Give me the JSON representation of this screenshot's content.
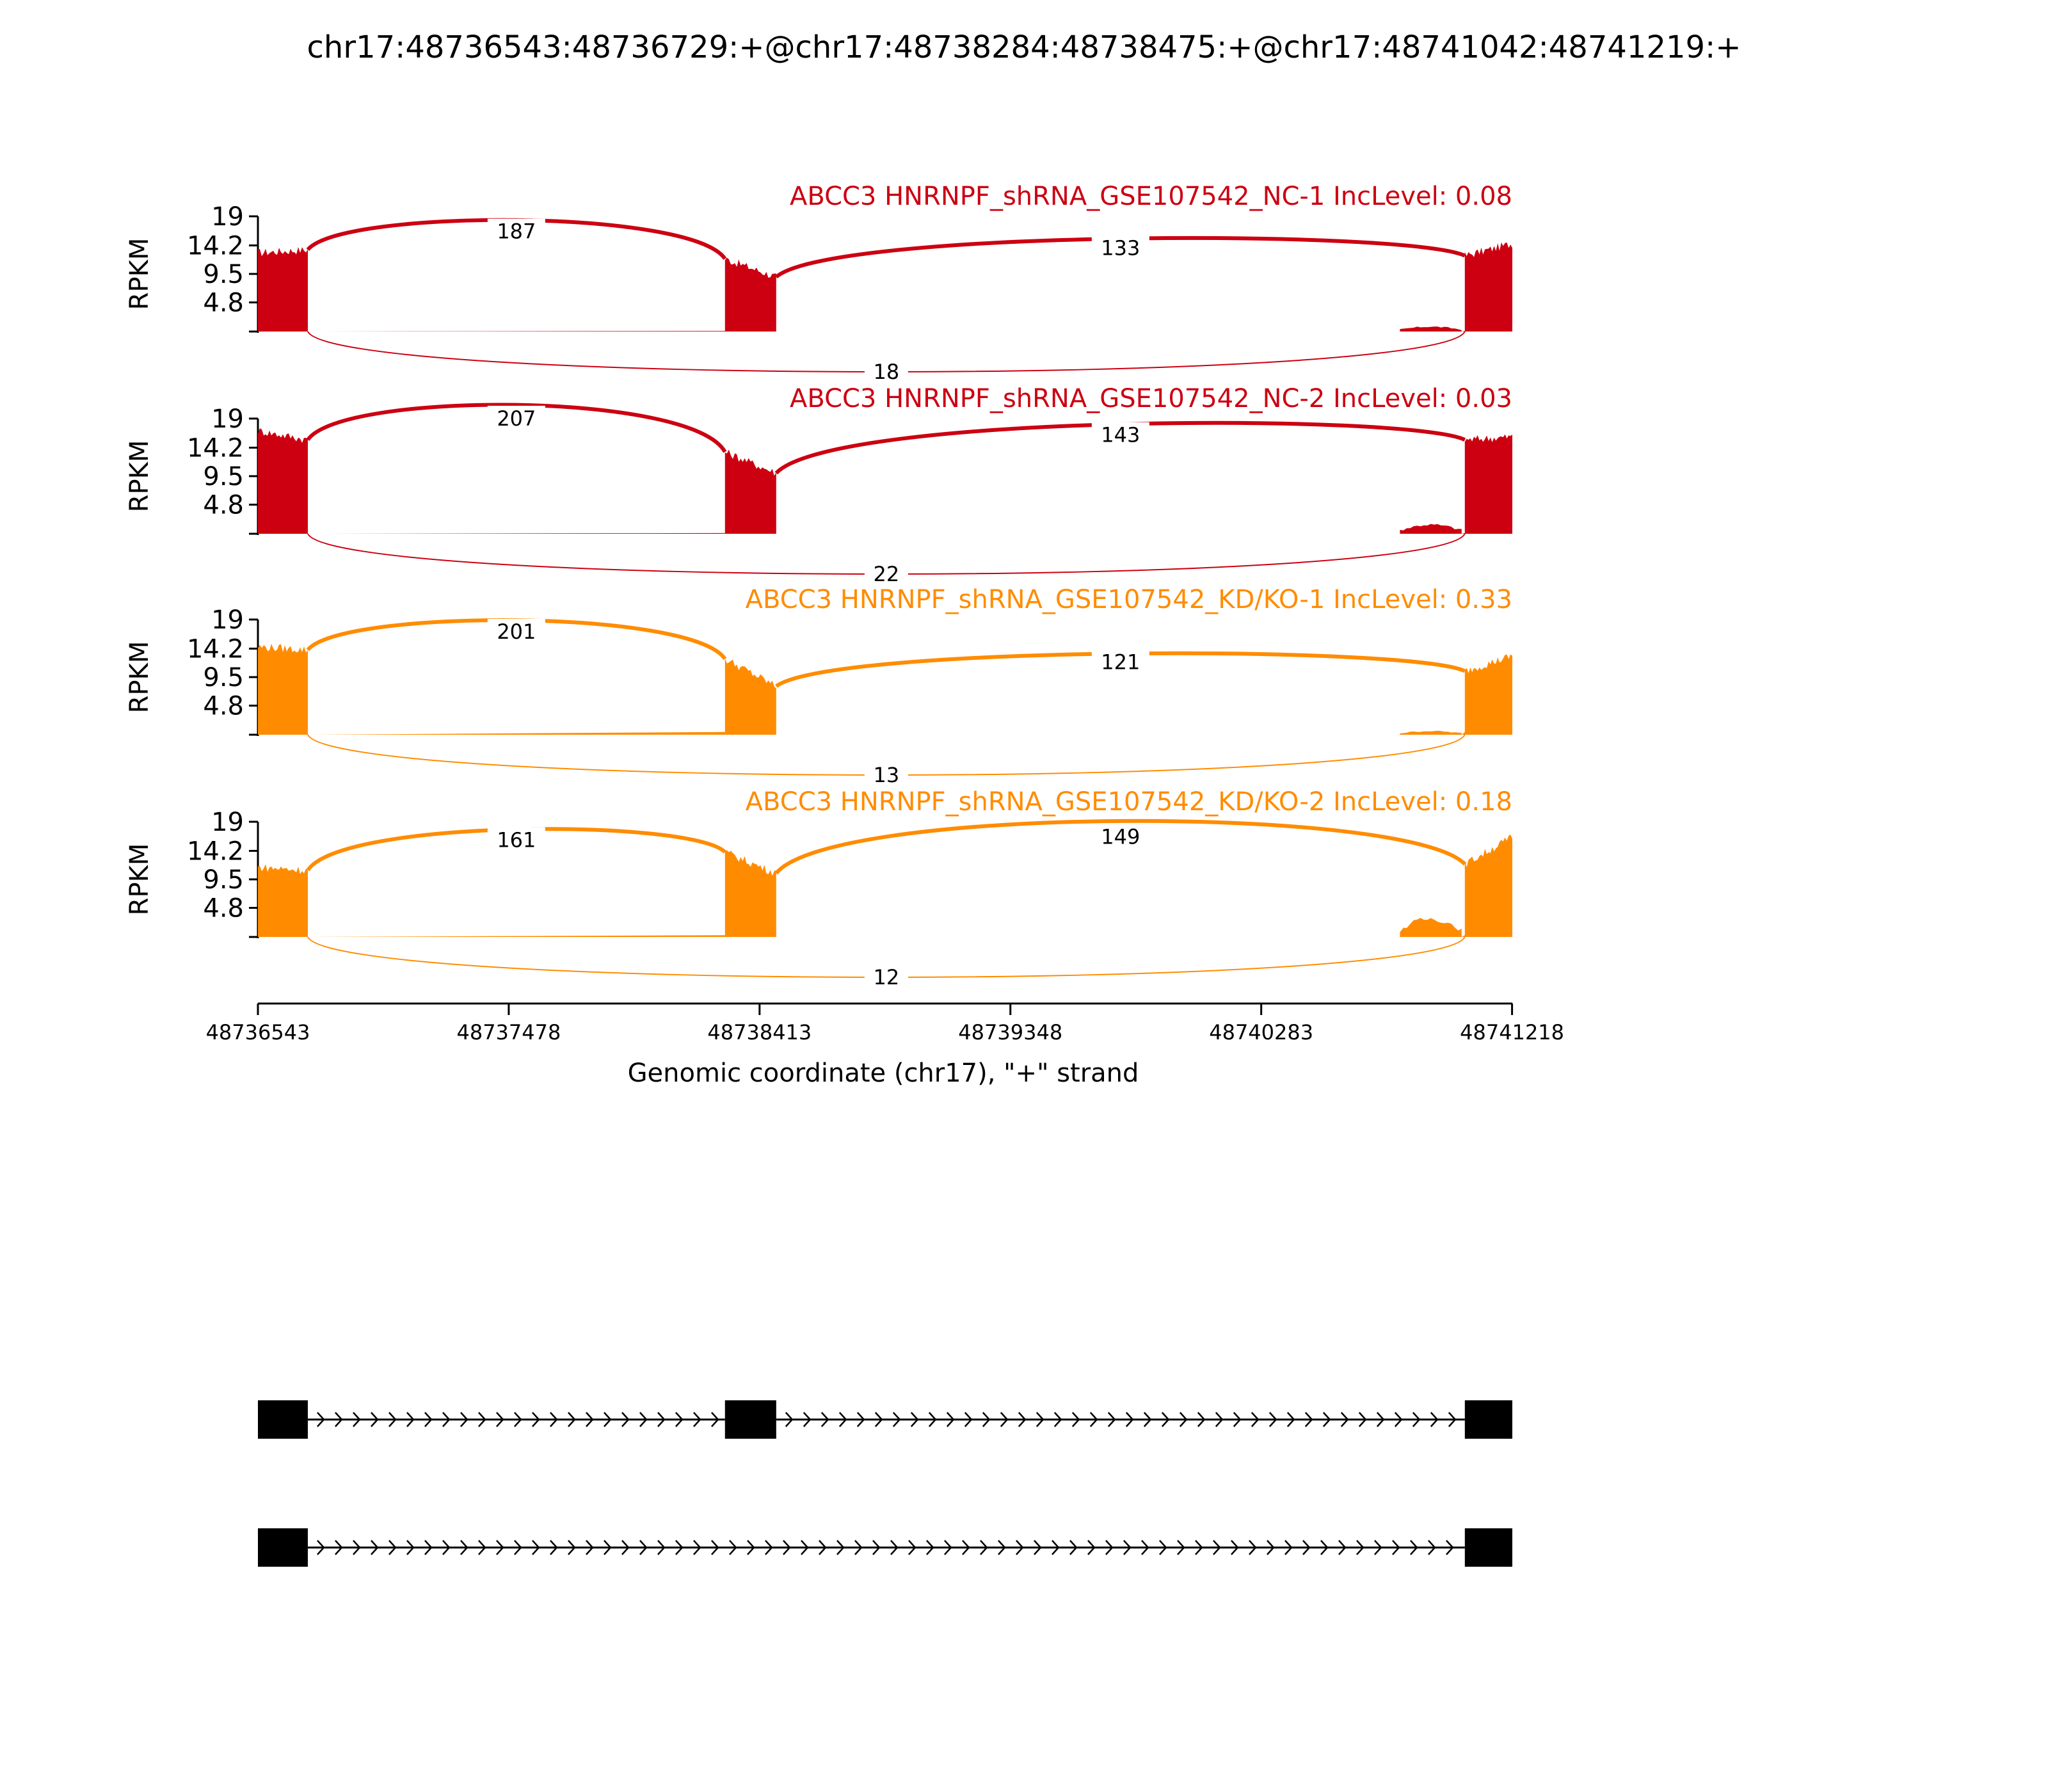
{
  "title": "chr17:48736543:48736729:+@chr17:48738284:48738475:+@chr17:48741042:48741219:+",
  "chart_data": {
    "type": "area",
    "chart_kind": "sashimi",
    "title": "chr17:48736543:48736729:+@chr17:48738284:48738475:+@chr17:48741042:48741219:+",
    "xlabel": "Genomic coordinate (chr17), \"+\" strand",
    "ylabel": "RPKM",
    "xlim": [
      48736543,
      48741219
    ],
    "x_ticks": [
      "48736543",
      "48737478",
      "48738413",
      "48739348",
      "48740283",
      "48741218"
    ],
    "x_tick_values": [
      48736543,
      48737478,
      48738413,
      48739348,
      48740283,
      48741218
    ],
    "ylim": [
      0,
      19
    ],
    "y_ticks": [
      "19",
      "14.2",
      "9.5",
      "4.8"
    ],
    "y_tick_values": [
      19,
      14.2,
      9.5,
      4.8
    ],
    "grid": false,
    "exons": [
      {
        "start": 48736543,
        "end": 48736729
      },
      {
        "start": 48738284,
        "end": 48738475
      },
      {
        "start": 48741042,
        "end": 48741219
      }
    ],
    "series": [
      {
        "name": "ABCC3 HNRNPF_shRNA_GSE107542_NC-1 IncLevel: 0.08",
        "color": "#cc0011",
        "pre_exon_level": 0.3,
        "exon_levels": [
          [
            13.0,
            13.5
          ],
          [
            12.0,
            9.0
          ],
          [
            12.5,
            14.5
          ]
        ],
        "intron_bump": {
          "start": 48740800,
          "end": 48741030,
          "level": 0.8
        },
        "junctions": [
          {
            "from": 48736729,
            "to": 48738284,
            "count": "187",
            "side": "up",
            "apex": 16.5
          },
          {
            "from": 48738475,
            "to": 48741042,
            "count": "133",
            "side": "up",
            "apex": 13.8
          },
          {
            "from": 48736729,
            "to": 48741042,
            "count": "18",
            "side": "down"
          }
        ]
      },
      {
        "name": "ABCC3 HNRNPF_shRNA_GSE107542_NC-2 IncLevel: 0.03",
        "color": "#cc0011",
        "pre_exon_level": 0.4,
        "exon_levels": [
          [
            17.0,
            15.5
          ],
          [
            13.5,
            10.0
          ],
          [
            15.5,
            16.0
          ]
        ],
        "intron_bump": {
          "start": 48740800,
          "end": 48741030,
          "level": 1.5
        },
        "junctions": [
          {
            "from": 48736729,
            "to": 48738284,
            "count": "207",
            "side": "up",
            "apex": 19.0
          },
          {
            "from": 48738475,
            "to": 48741042,
            "count": "143",
            "side": "up",
            "apex": 16.3
          },
          {
            "from": 48736729,
            "to": 48741042,
            "count": "22",
            "side": "down"
          }
        ]
      },
      {
        "name": "ABCC3 HNRNPF_shRNA_GSE107542_KD/KO-1 IncLevel: 0.33",
        "color": "#ff8c00",
        "pre_exon_level": 1.5,
        "exon_levels": [
          [
            14.5,
            14.0
          ],
          [
            12.5,
            8.0
          ],
          [
            10.5,
            13.0
          ]
        ],
        "intron_bump": {
          "start": 48740800,
          "end": 48741030,
          "level": 0.6
        },
        "junctions": [
          {
            "from": 48736729,
            "to": 48738284,
            "count": "201",
            "side": "up",
            "apex": 17.0
          },
          {
            "from": 48738475,
            "to": 48741042,
            "count": "121",
            "side": "up",
            "apex": 12.0
          },
          {
            "from": 48736729,
            "to": 48741042,
            "count": "13",
            "side": "down"
          }
        ]
      },
      {
        "name": "ABCC3 HNRNPF_shRNA_GSE107542_KD/KO-2 IncLevel: 0.18",
        "color": "#ff8c00",
        "pre_exon_level": 1.0,
        "exon_levels": [
          [
            11.5,
            11.0
          ],
          [
            14.0,
            10.5
          ],
          [
            12.0,
            16.5
          ]
        ],
        "intron_bump": {
          "start": 48740800,
          "end": 48741030,
          "level": 3.0
        },
        "junctions": [
          {
            "from": 48736729,
            "to": 48738284,
            "count": "161",
            "side": "up",
            "apex": 16.0
          },
          {
            "from": 48738475,
            "to": 48741042,
            "count": "149",
            "side": "up",
            "apex": 16.5
          },
          {
            "from": 48736729,
            "to": 48741042,
            "count": "12",
            "side": "down"
          }
        ]
      }
    ],
    "isoforms": [
      {
        "exons": [
          0,
          1,
          2
        ]
      },
      {
        "exons": [
          0,
          2
        ]
      }
    ]
  }
}
